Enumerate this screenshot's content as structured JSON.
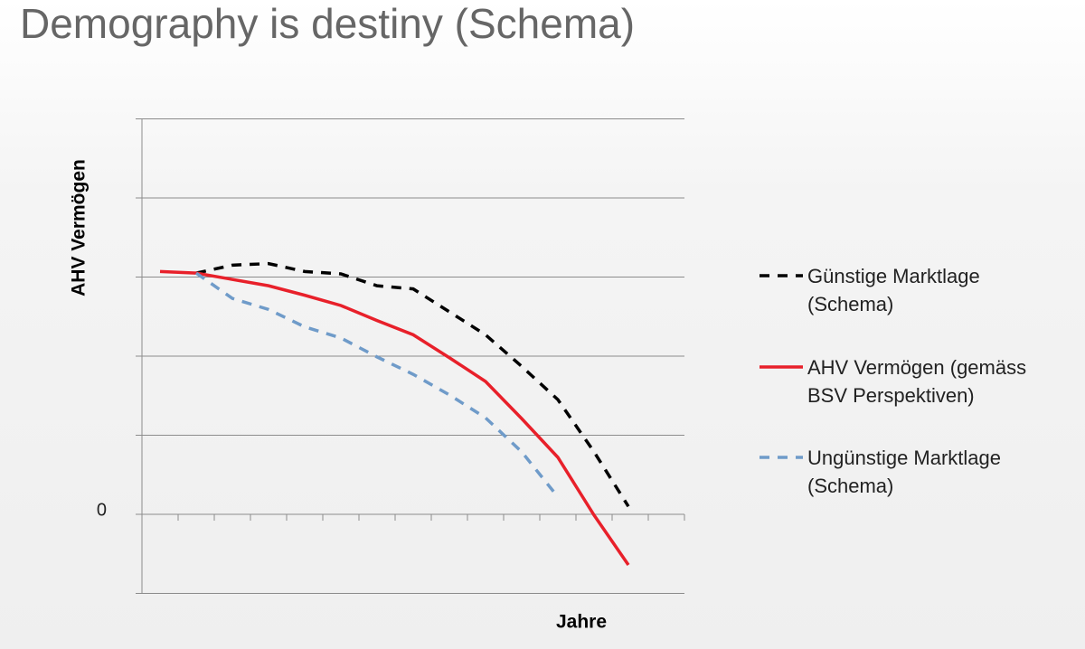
{
  "chart_data": {
    "type": "line",
    "title": "Demography is destiny (Schema)",
    "ylabel": "AHV Vermögen",
    "xlabel": "Jahre",
    "xlim": [
      0,
      15
    ],
    "x_tick_marks": [
      1,
      2,
      3,
      4,
      5,
      6,
      7,
      8,
      9,
      10,
      11,
      12,
      13,
      14,
      15
    ],
    "ylim": [
      -1,
      5
    ],
    "yticks": [
      0
    ],
    "ygrid": [
      -1,
      1,
      2,
      3,
      4,
      5
    ],
    "grid": true,
    "legend": "right",
    "series": [
      {
        "name": "Günstige Marktlage (Schema)",
        "color": "#000000",
        "dashed": true,
        "x": [
          1.5,
          2.5,
          3.5,
          4.5,
          5.5,
          6.5,
          7.5,
          8.5,
          9.5,
          10.5,
          11.5,
          12.5,
          13.45
        ],
        "values": [
          3.05,
          3.15,
          3.17,
          3.07,
          3.04,
          2.89,
          2.85,
          2.56,
          2.27,
          1.87,
          1.45,
          0.79,
          0.1
        ]
      },
      {
        "name": "AHV Vermögen (gemäss BSV Perspektiven)",
        "color": "#e8202a",
        "dashed": false,
        "x": [
          0.5,
          1.5,
          3.5,
          4.5,
          5.5,
          6.5,
          7.5,
          8.5,
          9.5,
          10.5,
          11.5,
          12.5,
          13.45
        ],
        "values": [
          3.07,
          3.05,
          2.89,
          2.77,
          2.64,
          2.45,
          2.27,
          1.98,
          1.68,
          1.21,
          0.72,
          -0.01,
          -0.64
        ]
      },
      {
        "name": "Ungünstige Marktlage (Schema)",
        "color": "#6f9bc9",
        "dashed": true,
        "x": [
          1.5,
          2.5,
          3.5,
          4.5,
          5.5,
          6.5,
          7.5,
          8.5,
          9.5,
          10.5,
          11.5
        ],
        "values": [
          3.05,
          2.73,
          2.59,
          2.37,
          2.23,
          1.99,
          1.77,
          1.51,
          1.22,
          0.79,
          0.22
        ]
      }
    ]
  }
}
